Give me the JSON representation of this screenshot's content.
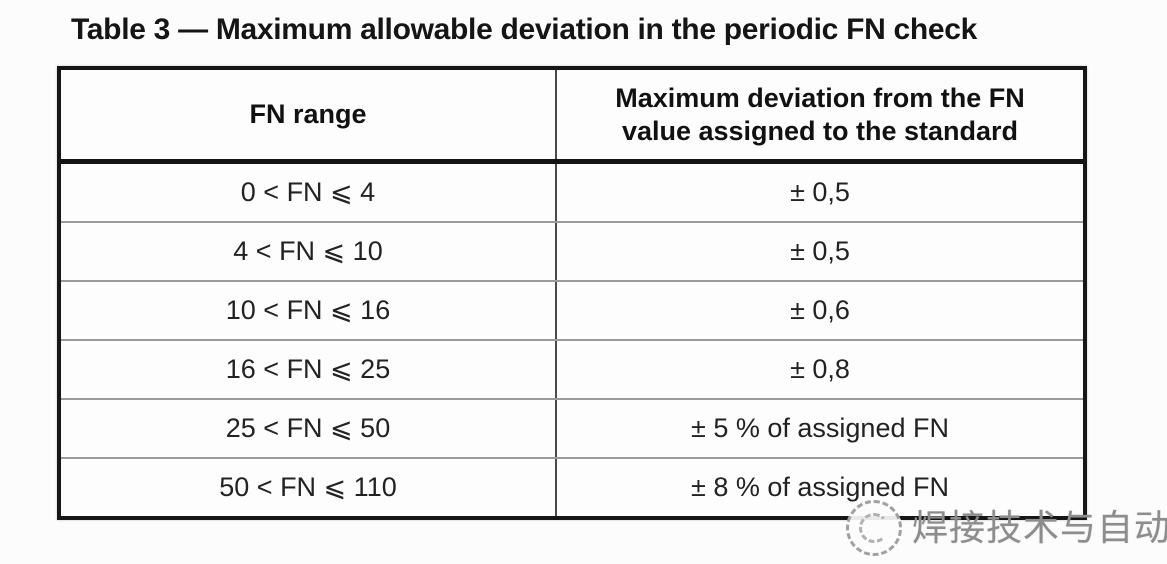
{
  "title": "Table 3 — Maximum allowable deviation in the periodic FN check",
  "table": {
    "header": {
      "col1": "FN range",
      "col2_line1": "Maximum deviation from the FN",
      "col2_line2": "value assigned to the standard"
    },
    "rows": [
      {
        "range": "0 < FN ⩽ 4",
        "deviation": "± 0,5"
      },
      {
        "range": "4 < FN ⩽ 10",
        "deviation": "± 0,5"
      },
      {
        "range": "10 < FN ⩽ 16",
        "deviation": "± 0,6"
      },
      {
        "range": "16 < FN ⩽ 25",
        "deviation": "± 0,8"
      },
      {
        "range": "25 < FN ⩽ 50",
        "deviation": "± 5 % of assigned FN"
      },
      {
        "range": "50 < FN ⩽ 110",
        "deviation": "± 8 % of assigned FN"
      }
    ]
  },
  "watermark": {
    "icon": "dashed-circle-logo",
    "text": "焊接技术与自动化",
    "color": "#8d8d8d"
  },
  "colors": {
    "background": "#fcfcfc",
    "text": "#1a1a1a",
    "outer_border": "#161616",
    "header_separator": "#141414",
    "column_divider": "#4a4a4a",
    "row_divider": "#9b9b9b"
  }
}
